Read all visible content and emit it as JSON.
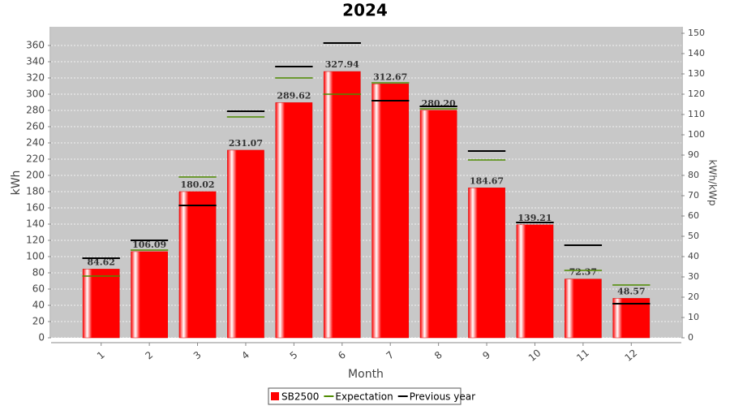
{
  "chart_data": {
    "type": "bar",
    "title": "2024",
    "x_label": "Month",
    "y_label": "kWh",
    "y2_label": "kWh/kWp",
    "categories": [
      "1",
      "2",
      "3",
      "4",
      "5",
      "6",
      "7",
      "8",
      "9",
      "10",
      "11",
      "12"
    ],
    "series": [
      {
        "name": "SB2500",
        "type": "bar",
        "color": "#ff0000",
        "values": [
          84.62,
          106.09,
          180.02,
          231.07,
          289.62,
          327.94,
          312.67,
          280.2,
          184.67,
          139.21,
          72.37,
          48.57
        ],
        "value_labels": [
          "84.62",
          "106.09",
          "180.02",
          "231.07",
          "289.62",
          "327.94",
          "312.67",
          "280.20",
          "184.67",
          "139.21",
          "72.37",
          "48.57"
        ]
      },
      {
        "name": "Expectation",
        "type": "level",
        "color": "#4d8a00",
        "values": [
          76,
          108,
          198,
          272,
          320,
          300,
          314,
          282,
          219,
          142,
          83,
          65
        ]
      },
      {
        "name": "Previous year",
        "type": "level",
        "color": "#000000",
        "values": [
          98,
          120,
          163,
          279,
          334,
          363,
          292,
          285,
          230,
          142,
          114,
          42
        ]
      }
    ],
    "ylim": [
      0,
      383
    ],
    "yticks": [
      0,
      20,
      40,
      60,
      80,
      100,
      120,
      140,
      160,
      180,
      200,
      220,
      240,
      260,
      280,
      300,
      320,
      340,
      360
    ],
    "y2lim": [
      0,
      153.2
    ],
    "y2ticks": [
      0,
      10,
      20,
      30,
      40,
      50,
      60,
      70,
      80,
      90,
      100,
      110,
      120,
      130,
      140,
      150
    ],
    "grid": true,
    "legend": "bottom"
  }
}
